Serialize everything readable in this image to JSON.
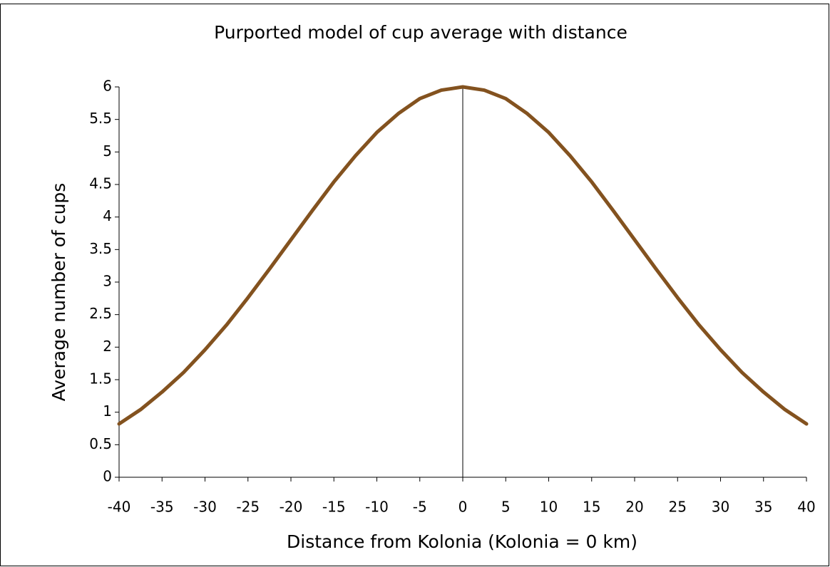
{
  "chart_data": {
    "type": "line",
    "title": "Purported model of cup average with distance",
    "xlabel": "Distance from Kolonia (Kolonia = 0 km)",
    "ylabel": "Average number of cups",
    "x": [
      -40,
      -37.5,
      -35,
      -32.5,
      -30,
      -27.5,
      -25,
      -22.5,
      -20,
      -17.5,
      -15,
      -12.5,
      -10,
      -7.5,
      -5,
      -2.5,
      0,
      2.5,
      5,
      7.5,
      10,
      12.5,
      15,
      17.5,
      20,
      22.5,
      25,
      27.5,
      30,
      32.5,
      35,
      37.5,
      40
    ],
    "series": [
      {
        "color": "#83521f",
        "values": [
          0.82,
          1.04,
          1.31,
          1.61,
          1.96,
          2.34,
          2.76,
          3.2,
          3.65,
          4.1,
          4.54,
          4.94,
          5.3,
          5.59,
          5.82,
          5.95,
          6,
          5.95,
          5.82,
          5.59,
          5.3,
          4.94,
          4.54,
          4.1,
          3.65,
          3.2,
          2.76,
          2.34,
          1.96,
          1.61,
          1.31,
          1.04,
          0.82
        ]
      }
    ],
    "xlim": [
      -40,
      40
    ],
    "xticks": [
      -40,
      -35,
      -30,
      -25,
      -20,
      -15,
      -10,
      -5,
      0,
      5,
      10,
      15,
      20,
      25,
      30,
      35,
      40
    ],
    "ylim": [
      0,
      6
    ],
    "yticks": [
      0,
      0.5,
      1,
      1.5,
      2,
      2.5,
      3,
      3.5,
      4,
      4.5,
      5,
      5.5,
      6
    ],
    "grid": false
  }
}
